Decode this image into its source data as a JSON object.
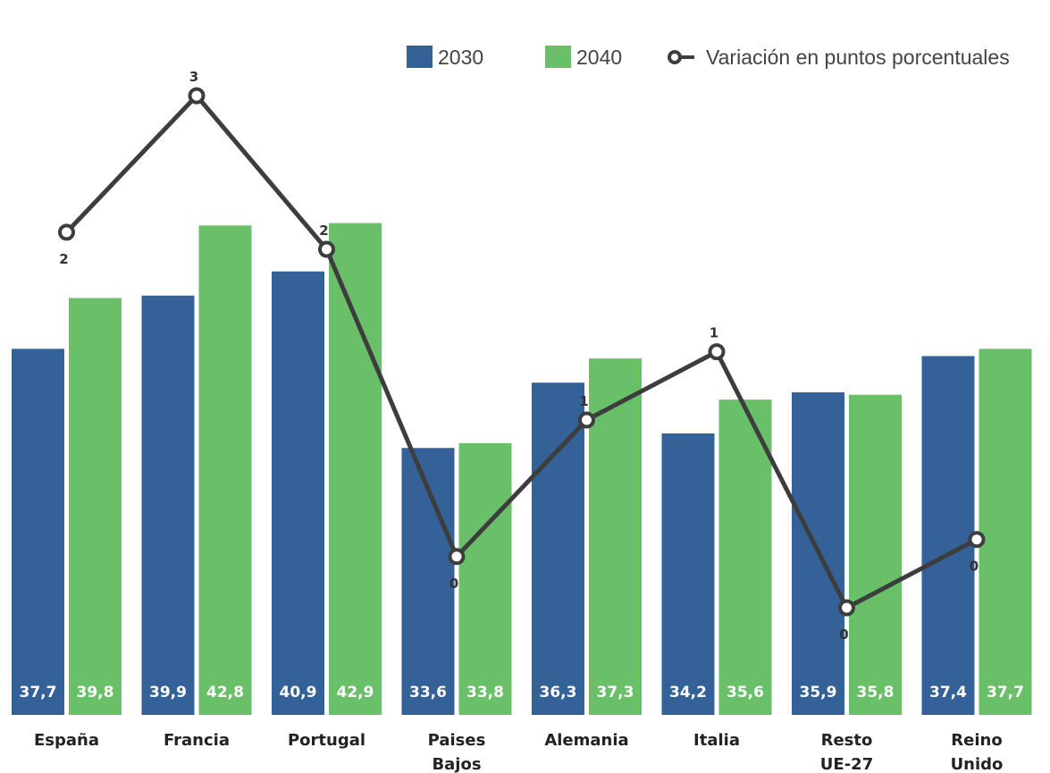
{
  "chart_data": {
    "type": "bar",
    "categories": [
      [
        "España"
      ],
      [
        "Francia"
      ],
      [
        "Portugal"
      ],
      [
        "Paises",
        "Bajos"
      ],
      [
        "Alemania"
      ],
      [
        "Italia"
      ],
      [
        "Resto",
        "UE-27"
      ],
      [
        "Reino",
        "Unido"
      ]
    ],
    "series": [
      {
        "name": "2030",
        "color": "#336198",
        "values": [
          37.7,
          39.9,
          40.9,
          33.6,
          36.3,
          34.2,
          35.9,
          37.4
        ],
        "labels": [
          "37,7",
          "39,9",
          "40,9",
          "33,6",
          "36,3",
          "34,2",
          "35,9",
          "37,4"
        ]
      },
      {
        "name": "2040",
        "color": "#6abf69",
        "values": [
          39.8,
          42.8,
          42.9,
          33.8,
          37.3,
          35.6,
          35.8,
          37.7
        ],
        "labels": [
          "39,8",
          "42,8",
          "42,9",
          "33,8",
          "37,3",
          "35,6",
          "35,8",
          "37,7"
        ]
      }
    ],
    "line_series": {
      "name": "Variación en puntos porcentuales",
      "type": "line",
      "color": "#3d3d3d",
      "values": [
        2.1,
        2.9,
        2.0,
        0.2,
        1.0,
        1.4,
        -0.1,
        0.3
      ],
      "labels": [
        "2",
        "3",
        "2",
        "0",
        "1",
        "1",
        "0",
        "0"
      ],
      "label_positions": [
        "below",
        "above",
        "above",
        "below",
        "above",
        "above",
        "below",
        "below"
      ]
    },
    "legend": {
      "placement": "top-right"
    },
    "grid": false
  }
}
